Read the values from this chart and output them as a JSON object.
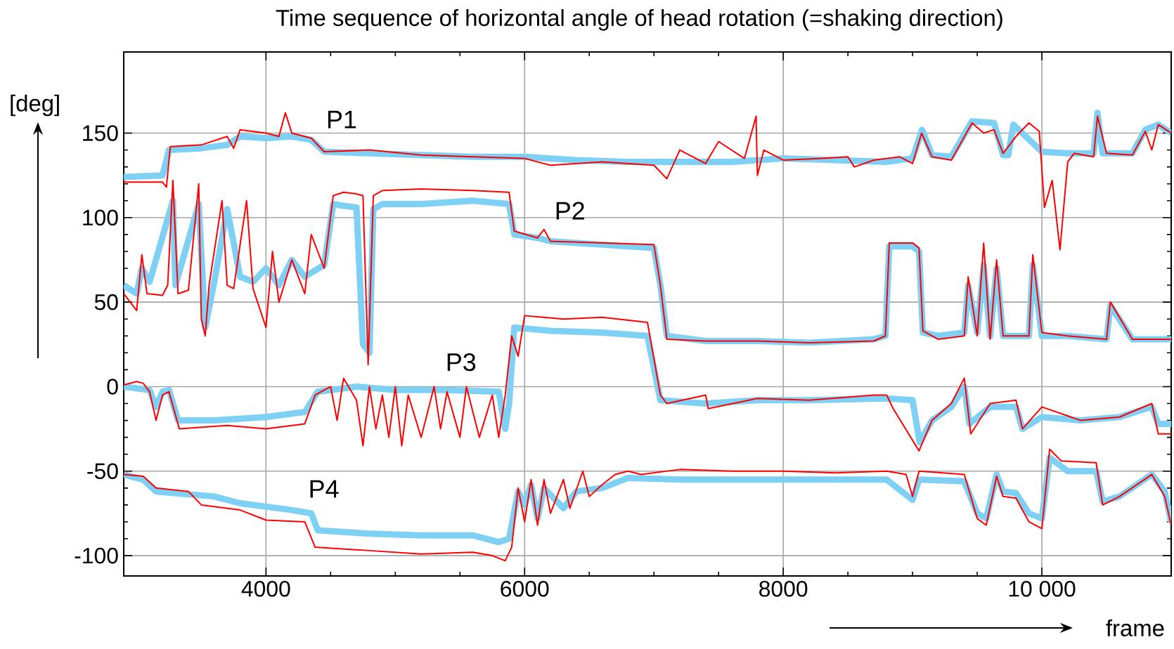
{
  "chart_data": {
    "type": "line",
    "title": "Time sequence of horizontal angle of head rotation (=shaking direction)",
    "xlabel": "frame",
    "ylabel": "[deg]",
    "xlim": [
      2900,
      11000
    ],
    "ylim": [
      -112,
      198
    ],
    "xticks": [
      4000,
      6000,
      8000,
      {
        "value": 10000,
        "label": "10 000"
      }
    ],
    "yticks": [
      -100,
      -50,
      0,
      50,
      100,
      150
    ],
    "grid": true,
    "marker": "none",
    "line_style": "solid",
    "annotations": [
      "P1",
      "P2",
      "P3",
      "P4"
    ],
    "series": [
      {
        "color": "#7fd0f5",
        "x": [
          2900,
          3200,
          3250,
          3500,
          3700,
          3800,
          4000,
          4200,
          4350,
          4450,
          4800,
          5200,
          5600,
          6000,
          6400,
          6800,
          7200,
          7600,
          8000,
          8400,
          8800,
          9000,
          9073,
          9150,
          9300,
          9460,
          9630,
          9700,
          9740,
          9780,
          10000,
          10200,
          10400,
          10430,
          10470,
          10700,
          10800,
          10900,
          11000
        ],
        "values": [
          124,
          125,
          140,
          141,
          143,
          148,
          147,
          148,
          146,
          139,
          138,
          137,
          136,
          136,
          134,
          133,
          133,
          133,
          135,
          134,
          133,
          135,
          152,
          137,
          136,
          157,
          156,
          137,
          137,
          155,
          139,
          138,
          138,
          162,
          138,
          138,
          152,
          155,
          150
        ]
      },
      {
        "color": "#ff0000",
        "x": [
          2900,
          3200,
          3230,
          3260,
          3500,
          3700,
          3750,
          3800,
          4000,
          4100,
          4150,
          4200,
          4350,
          4450,
          4800,
          5200,
          5600,
          6000,
          6200,
          6600,
          7000,
          7100,
          7200,
          7400,
          7500,
          7700,
          7790,
          7800,
          7850,
          8000,
          8300,
          8500,
          8550,
          8700,
          8900,
          9000,
          9070,
          9150,
          9300,
          9460,
          9550,
          9630,
          9700,
          9800,
          9900,
          9980,
          10020,
          10080,
          10140,
          10200,
          10250,
          10400,
          10430,
          10500,
          10700,
          10800,
          10850,
          10900,
          11000
        ],
        "values": [
          121,
          121,
          118,
          142,
          143,
          148,
          141,
          152,
          150,
          148,
          162,
          150,
          147,
          139,
          140,
          137,
          136,
          135,
          131,
          133,
          131,
          123,
          140,
          132,
          145,
          135,
          160,
          125,
          140,
          134,
          135,
          136,
          130,
          134,
          136,
          132,
          150,
          136,
          134,
          156,
          150,
          152,
          138,
          148,
          156,
          151,
          106,
          122,
          81,
          133,
          138,
          136,
          160,
          138,
          137,
          151,
          140,
          155,
          150
        ]
      },
      {
        "color": "#7fd0f5",
        "x": [
          2900,
          3000,
          3040,
          3100,
          3280,
          3300,
          3480,
          3530,
          3600,
          3700,
          3800,
          3900,
          4000,
          4100,
          4200,
          4300,
          4450,
          4520,
          4600,
          4700,
          4750,
          4800,
          4830,
          4900,
          5200,
          5600,
          5880,
          5920,
          6100,
          6200,
          6600,
          7000,
          7050,
          7100,
          7400,
          7800,
          8200,
          8700,
          8790,
          8820,
          9000,
          9050,
          9080,
          9200,
          9400,
          9430,
          9500,
          9550,
          9600,
          9650,
          9700,
          9900,
          9930,
          10000,
          10200,
          10500,
          10530,
          10700,
          11000
        ],
        "values": [
          60,
          55,
          70,
          62,
          110,
          60,
          108,
          35,
          62,
          105,
          65,
          62,
          70,
          60,
          75,
          65,
          72,
          108,
          107,
          106,
          25,
          20,
          105,
          108,
          108,
          110,
          108,
          90,
          88,
          86,
          84,
          82,
          60,
          30,
          27,
          27,
          26,
          28,
          30,
          83,
          83,
          80,
          32,
          30,
          32,
          60,
          32,
          72,
          30,
          70,
          30,
          30,
          72,
          30,
          30,
          28,
          48,
          28,
          28
        ]
      },
      {
        "color": "#ff0000",
        "x": [
          2900,
          3000,
          3040,
          3080,
          3200,
          3240,
          3280,
          3320,
          3400,
          3480,
          3500,
          3530,
          3560,
          3660,
          3700,
          3750,
          3850,
          3900,
          4000,
          4050,
          4100,
          4200,
          4300,
          4350,
          4450,
          4520,
          4600,
          4700,
          4750,
          4790,
          4830,
          4900,
          5200,
          5600,
          5880,
          5920,
          6100,
          6150,
          6200,
          6600,
          7000,
          7050,
          7100,
          7400,
          7800,
          8200,
          8700,
          8790,
          8820,
          9000,
          9050,
          9080,
          9200,
          9400,
          9430,
          9500,
          9550,
          9600,
          9650,
          9700,
          9900,
          9930,
          10000,
          10200,
          10500,
          10530,
          10700,
          11000
        ],
        "values": [
          55,
          45,
          78,
          55,
          54,
          60,
          122,
          55,
          57,
          120,
          40,
          30,
          60,
          110,
          60,
          58,
          110,
          58,
          35,
          80,
          50,
          75,
          55,
          90,
          70,
          113,
          115,
          114,
          113,
          13,
          113,
          116,
          117,
          116,
          115,
          92,
          88,
          93,
          86,
          85,
          84,
          60,
          28,
          27,
          27,
          26,
          27,
          30,
          85,
          85,
          82,
          33,
          28,
          30,
          65,
          30,
          85,
          28,
          75,
          30,
          30,
          78,
          32,
          30,
          28,
          50,
          28,
          28
        ]
      },
      {
        "color": "#7fd0f5",
        "x": [
          2900,
          3100,
          3150,
          3200,
          3250,
          3320,
          3600,
          4000,
          4300,
          4400,
          4700,
          5000,
          5400,
          5800,
          5850,
          5880,
          5920,
          6200,
          6600,
          6950,
          7050,
          7400,
          7800,
          8200,
          8800,
          9000,
          9055,
          9150,
          9300,
          9400,
          9440,
          9600,
          9800,
          9850,
          10000,
          10300,
          10600,
          10850,
          10900,
          11000
        ],
        "values": [
          0,
          -2,
          -12,
          -3,
          -2,
          -20,
          -20,
          -18,
          -15,
          -3,
          0,
          -2,
          -2,
          -3,
          -25,
          -10,
          35,
          33,
          32,
          30,
          -8,
          -10,
          -8,
          -8,
          -7,
          -8,
          -33,
          -20,
          -12,
          0,
          -22,
          -12,
          -12,
          -25,
          -18,
          -20,
          -18,
          -12,
          -22,
          -22
        ]
      },
      {
        "color": "#ff0000",
        "x": [
          2900,
          3000,
          3050,
          3100,
          3150,
          3200,
          3250,
          3330,
          3700,
          4000,
          4300,
          4380,
          4500,
          4550,
          4600,
          4700,
          4750,
          4800,
          4850,
          4900,
          4950,
          5000,
          5050,
          5100,
          5200,
          5300,
          5350,
          5400,
          5500,
          5550,
          5650,
          5750,
          5800,
          5850,
          5900,
          5950,
          6000,
          6300,
          6600,
          6950,
          7050,
          7100,
          7400,
          7420,
          7800,
          8200,
          8700,
          8800,
          8850,
          9050,
          9150,
          9300,
          9400,
          9450,
          9600,
          9800,
          9850,
          10000,
          10300,
          10600,
          10850,
          10900,
          11000
        ],
        "values": [
          1,
          3,
          2,
          -3,
          -20,
          -5,
          -3,
          -25,
          -23,
          -25,
          -22,
          -5,
          0,
          -20,
          5,
          -8,
          -35,
          0,
          -25,
          -5,
          -30,
          0,
          -35,
          -5,
          -30,
          0,
          -25,
          -3,
          -30,
          0,
          -30,
          -5,
          -30,
          -5,
          30,
          18,
          42,
          40,
          41,
          38,
          -5,
          -10,
          -5,
          -13,
          -7,
          -8,
          -5,
          -5,
          -13,
          -38,
          -20,
          -10,
          5,
          -28,
          -10,
          -8,
          -25,
          -12,
          -20,
          -18,
          -10,
          -28,
          -28
        ]
      },
      {
        "color": "#7fd0f5",
        "x": [
          2900,
          3050,
          3150,
          3600,
          3800,
          4200,
          4350,
          4400,
          4800,
          5200,
          5600,
          5800,
          5880,
          5950,
          6000,
          6050,
          6100,
          6150,
          6300,
          6400,
          6600,
          6800,
          7200,
          7600,
          8000,
          8400,
          8800,
          9000,
          9050,
          9400,
          9500,
          9570,
          9650,
          9700,
          9800,
          9900,
          10000,
          10060,
          10200,
          10420,
          10470,
          10600,
          10850,
          10950,
          11000
        ],
        "values": [
          -52,
          -55,
          -62,
          -65,
          -69,
          -73,
          -75,
          -85,
          -87,
          -88,
          -88,
          -92,
          -90,
          -62,
          -70,
          -58,
          -78,
          -60,
          -72,
          -62,
          -60,
          -54,
          -55,
          -55,
          -55,
          -55,
          -55,
          -67,
          -55,
          -56,
          -75,
          -78,
          -52,
          -62,
          -63,
          -75,
          -78,
          -42,
          -50,
          -50,
          -68,
          -65,
          -52,
          -62,
          -80
        ]
      },
      {
        "color": "#ff0000",
        "x": [
          2900,
          3050,
          3150,
          3400,
          3500,
          3800,
          4000,
          4300,
          4380,
          4800,
          5200,
          5600,
          5750,
          5850,
          5900,
          5950,
          6000,
          6050,
          6100,
          6150,
          6200,
          6300,
          6350,
          6450,
          6500,
          6600,
          6700,
          6800,
          6900,
          7200,
          7600,
          8000,
          8400,
          8800,
          8950,
          9000,
          9050,
          9400,
          9500,
          9570,
          9650,
          9700,
          9800,
          9900,
          10000,
          10060,
          10150,
          10420,
          10470,
          10600,
          10850,
          10950,
          11000
        ],
        "values": [
          -52,
          -53,
          -60,
          -62,
          -70,
          -73,
          -79,
          -80,
          -95,
          -97,
          -99,
          -98,
          -100,
          -103,
          -95,
          -60,
          -80,
          -55,
          -82,
          -55,
          -75,
          -55,
          -72,
          -50,
          -65,
          -58,
          -52,
          -50,
          -52,
          -49,
          -50,
          -50,
          -51,
          -50,
          -52,
          -65,
          -50,
          -52,
          -78,
          -82,
          -53,
          -65,
          -66,
          -80,
          -84,
          -37,
          -44,
          -45,
          -70,
          -65,
          -52,
          -65,
          -82
        ]
      }
    ]
  }
}
